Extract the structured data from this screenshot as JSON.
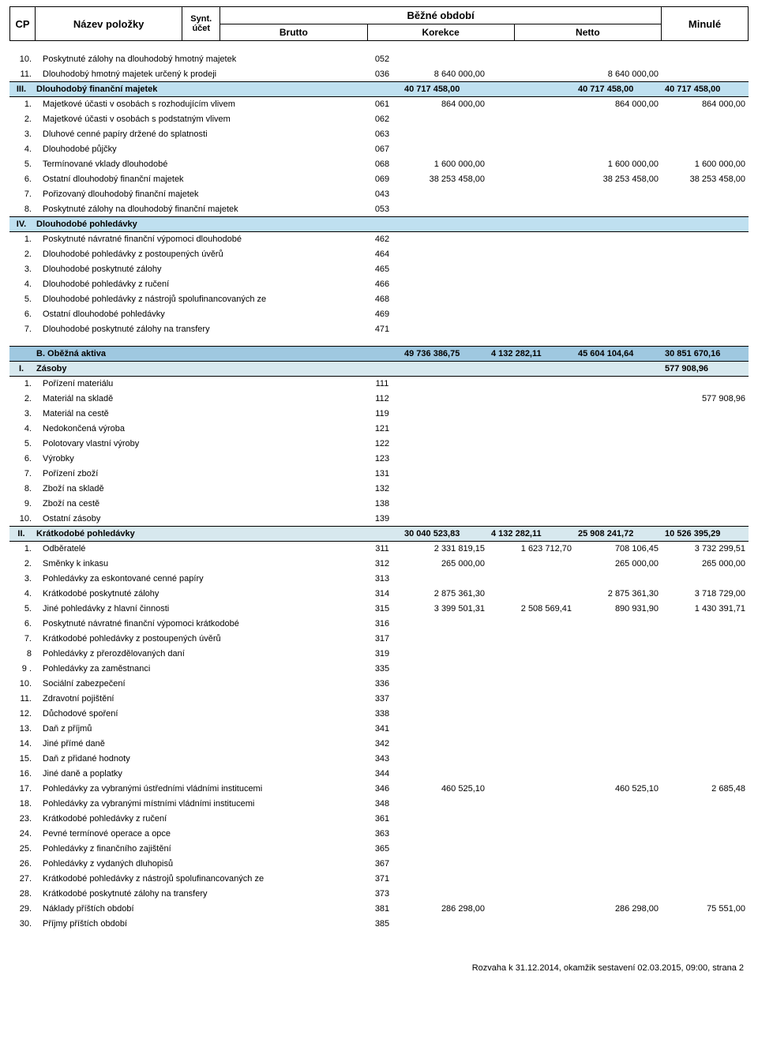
{
  "header": {
    "cp": "CP",
    "name": "Název položky",
    "synt1": "Synt.",
    "synt2": "účet",
    "period": "Běžné období",
    "brutto": "Brutto",
    "korekce": "Korekce",
    "netto": "Netto",
    "minule": "Minulé"
  },
  "rows": [
    {
      "n": "10.",
      "label": "Poskytnuté zálohy na dlouhodobý hmotný majetek",
      "acct": "052"
    },
    {
      "n": "11.",
      "label": "Dlouhodobý hmotný majetek určený k prodeji",
      "acct": "036",
      "b": "8 640 000,00",
      "net": "8 640 000,00"
    },
    {
      "type": "sec",
      "color": "section-blue",
      "roman": "III.",
      "label": "Dlouhodobý finanční majetek",
      "b": "40 717 458,00",
      "net": "40 717 458,00",
      "m": "40 717 458,00"
    },
    {
      "n": "1.",
      "label": "Majetkové účasti v osobách s rozhodujícím vlivem",
      "acct": "061",
      "b": "864 000,00",
      "net": "864 000,00",
      "m": "864 000,00"
    },
    {
      "n": "2.",
      "label": "Majetkové účasti v osobách s podstatným vlivem",
      "acct": "062"
    },
    {
      "n": "3.",
      "label": "Dluhové cenné papíry držené do splatnosti",
      "acct": "063"
    },
    {
      "n": "4.",
      "label": "Dlouhodobé půjčky",
      "acct": "067"
    },
    {
      "n": "5.",
      "label": "Termínované vklady dlouhodobé",
      "acct": "068",
      "b": "1 600 000,00",
      "net": "1 600 000,00",
      "m": "1 600 000,00"
    },
    {
      "n": "6.",
      "label": "Ostatní dlouhodobý finanční majetek",
      "acct": "069",
      "b": "38 253 458,00",
      "net": "38 253 458,00",
      "m": "38 253 458,00"
    },
    {
      "n": "7.",
      "label": "Pořizovaný dlouhodobý finanční majetek",
      "acct": "043"
    },
    {
      "n": "8.",
      "label": "Poskytnuté zálohy na dlouhodobý finanční majetek",
      "acct": "053"
    },
    {
      "type": "sec",
      "color": "section-blue",
      "roman": "IV.",
      "label": "Dlouhodobé pohledávky"
    },
    {
      "n": "1.",
      "label": "Poskytnuté návratné finanční výpomoci dlouhodobé",
      "acct": "462"
    },
    {
      "n": "2.",
      "label": "Dlouhodobé pohledávky z postoupených úvěrů",
      "acct": "464"
    },
    {
      "n": "3.",
      "label": "Dlouhodobé poskytnuté zálohy",
      "acct": "465"
    },
    {
      "n": "4.",
      "label": "Dlouhodobé pohledávky z ručení",
      "acct": "466"
    },
    {
      "n": "5.",
      "label": "Dlouhodobé pohledávky z nástrojů spolufinancovaných ze",
      "acct": "468"
    },
    {
      "n": "6.",
      "label": "Ostatní dlouhodobé pohledávky",
      "acct": "469"
    },
    {
      "n": "7.",
      "label": "Dlouhodobé poskytnuté zálohy na transfery",
      "acct": "471"
    },
    {
      "type": "spacer"
    },
    {
      "type": "sec",
      "color": "section-navy",
      "roman": "",
      "label": "B. Oběžná aktiva",
      "b": "49 736 386,75",
      "k": "4 132 282,11",
      "net": "45 604 104,64",
      "m": "30 851 670,16"
    },
    {
      "type": "sec",
      "color": "section-lblue",
      "roman": "I.",
      "label": "Zásoby",
      "m": "577 908,96"
    },
    {
      "n": "1.",
      "label": "Pořízení materiálu",
      "acct": "111"
    },
    {
      "n": "2.",
      "label": "Materiál na skladě",
      "acct": "112",
      "m": "577 908,96"
    },
    {
      "n": "3.",
      "label": "Materiál na cestě",
      "acct": "119"
    },
    {
      "n": "4.",
      "label": "Nedokončená výroba",
      "acct": "121"
    },
    {
      "n": "5.",
      "label": "Polotovary vlastní výroby",
      "acct": "122"
    },
    {
      "n": "6.",
      "label": "Výrobky",
      "acct": "123"
    },
    {
      "n": "7.",
      "label": "Pořízení zboží",
      "acct": "131"
    },
    {
      "n": "8.",
      "label": "Zboží na skladě",
      "acct": "132"
    },
    {
      "n": "9.",
      "label": "Zboží na cestě",
      "acct": "138"
    },
    {
      "n": "10.",
      "label": "Ostatní zásoby",
      "acct": "139"
    },
    {
      "type": "sec",
      "color": "section-lblue",
      "roman": "II.",
      "label": "Krátkodobé pohledávky",
      "b": "30 040 523,83",
      "k": "4 132 282,11",
      "net": "25 908 241,72",
      "m": "10 526 395,29"
    },
    {
      "n": "1.",
      "label": "Odběratelé",
      "acct": "311",
      "b": "2 331 819,15",
      "k": "1 623 712,70",
      "net": "708 106,45",
      "m": "3 732 299,51"
    },
    {
      "n": "2.",
      "label": "Směnky k inkasu",
      "acct": "312",
      "b": "265 000,00",
      "net": "265 000,00",
      "m": "265 000,00"
    },
    {
      "n": "3.",
      "label": "Pohledávky za eskontované cenné papíry",
      "acct": "313"
    },
    {
      "n": "4.",
      "label": "Krátkodobé poskytnuté zálohy",
      "acct": "314",
      "b": "2 875 361,30",
      "net": "2 875 361,30",
      "m": "3 718 729,00"
    },
    {
      "n": "5.",
      "label": "Jiné pohledávky z hlavní činnosti",
      "acct": "315",
      "b": "3 399 501,31",
      "k": "2 508 569,41",
      "net": "890 931,90",
      "m": "1 430 391,71"
    },
    {
      "n": "6.",
      "label": "Poskytnuté návratné finanční výpomoci krátkodobé",
      "acct": "316"
    },
    {
      "n": "7.",
      "label": "Krátkodobé pohledávky z postoupených úvěrů",
      "acct": "317"
    },
    {
      "n": "8",
      "label": "Pohledávky z přerozdělovaných daní",
      "acct": "319"
    },
    {
      "n": "9 .",
      "label": "Pohledávky za zaměstnanci",
      "acct": "335"
    },
    {
      "n": "10.",
      "label": "Sociální zabezpečení",
      "acct": "336"
    },
    {
      "n": "11.",
      "label": "Zdravotní pojištění",
      "acct": "337"
    },
    {
      "n": "12.",
      "label": "Důchodové spoření",
      "acct": "338"
    },
    {
      "n": "13.",
      "label": "Daň z příjmů",
      "acct": "341"
    },
    {
      "n": "14.",
      "label": "Jiné přímé daně",
      "acct": "342"
    },
    {
      "n": "15.",
      "label": "Daň z přidané hodnoty",
      "acct": "343"
    },
    {
      "n": "16.",
      "label": "Jiné daně a poplatky",
      "acct": "344"
    },
    {
      "n": "17.",
      "label": "Pohledávky za vybranými ústředními vládními institucemi",
      "acct": "346",
      "b": "460 525,10",
      "net": "460 525,10",
      "m": "2 685,48"
    },
    {
      "n": "18.",
      "label": "Pohledávky za vybranými místními vládními institucemi",
      "acct": "348"
    },
    {
      "n": "23.",
      "label": "Krátkodobé pohledávky z ručení",
      "acct": "361"
    },
    {
      "n": "24.",
      "label": "Pevné termínové operace a opce",
      "acct": "363"
    },
    {
      "n": "25.",
      "label": "Pohledávky z finančního zajištění",
      "acct": "365"
    },
    {
      "n": "26.",
      "label": "Pohledávky z vydaných dluhopisů",
      "acct": "367"
    },
    {
      "n": "27.",
      "label": "Krátkodobé pohledávky z nástrojů spolufinancovaných ze",
      "acct": "371"
    },
    {
      "n": "28.",
      "label": "Krátkodobé poskytnuté zálohy na transfery",
      "acct": "373"
    },
    {
      "n": "29.",
      "label": "Náklady příštích období",
      "acct": "381",
      "b": "286 298,00",
      "net": "286 298,00",
      "m": "75 551,00"
    },
    {
      "n": "30.",
      "label": "Příjmy příštích období",
      "acct": "385"
    }
  ],
  "footer": "Rozvaha k 31.12.2014, okamžik sestavení 02.03.2015, 09:00, strana 2"
}
